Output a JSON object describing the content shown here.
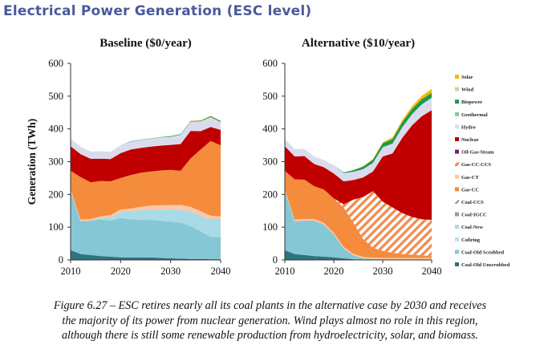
{
  "title": "Electrical Power Generation (ESC level)",
  "caption_lines": [
    "Figure 6.27 – ESC retires nearly all its coal plants in the alternative case by 2030 and receives",
    "the majority of its power from nuclear generation. Wind plays almost no role in this region,",
    "although there is still some renewable production from hydroelectricity, solar, and biomass."
  ],
  "legend": [
    {
      "name": "Solar",
      "color": "#f5b800",
      "pattern": "solid"
    },
    {
      "name": "Wind",
      "color": "#d9cf9a",
      "pattern": "solid"
    },
    {
      "name": "Biopower",
      "color": "#1d9a4c",
      "pattern": "solid"
    },
    {
      "name": "Geothermal",
      "color": "#84c79a",
      "pattern": "solid"
    },
    {
      "name": "Hydro",
      "color": "#dadcee",
      "pattern": "solid"
    },
    {
      "name": "Nuclear",
      "color": "#c00000",
      "pattern": "solid"
    },
    {
      "name": "Oil-Gas-Steam",
      "color": "#7a1f6e",
      "pattern": "solid"
    },
    {
      "name": "Gas-CC-CCS",
      "color": "#f4894a",
      "pattern": "hatch"
    },
    {
      "name": "Gas-CT",
      "color": "#fbc7a4",
      "pattern": "solid"
    },
    {
      "name": "Gas-CC",
      "color": "#f58b3d",
      "pattern": "solid"
    },
    {
      "name": "Coal-CCS",
      "color": "#8a8a8a",
      "pattern": "hatch"
    },
    {
      "name": "Coal-IGCC",
      "color": "#9a9a9a",
      "pattern": "solid"
    },
    {
      "name": "Coal-New",
      "color": "#a9dbe6",
      "pattern": "solid"
    },
    {
      "name": "Cofiring",
      "color": "#b9e0ea",
      "pattern": "solid"
    },
    {
      "name": "Coal-Old Scrubbed",
      "color": "#86c7d6",
      "pattern": "solid"
    },
    {
      "name": "Coal-Old Unscrubbed",
      "color": "#2e7580",
      "pattern": "solid"
    }
  ],
  "chart_data": [
    {
      "type": "area",
      "title": "Baseline ($0/year)",
      "ylabel": "Generation (TWh)",
      "xlabel": "",
      "ylim": [
        0,
        600
      ],
      "yticks": [
        0,
        100,
        200,
        300,
        400,
        500,
        600
      ],
      "xticks": [
        2010,
        2020,
        2030,
        2040
      ],
      "x": [
        2010,
        2012,
        2014,
        2016,
        2018,
        2020,
        2022,
        2024,
        2026,
        2028,
        2030,
        2032,
        2034,
        2036,
        2038,
        2040
      ],
      "series": [
        {
          "name": "Coal-Old Unscrubbed",
          "values": [
            30,
            18,
            15,
            12,
            10,
            8,
            8,
            8,
            8,
            6,
            5,
            4,
            3,
            3,
            2,
            2
          ]
        },
        {
          "name": "Coal-Old Scrubbed",
          "values": [
            180,
            100,
            105,
            112,
            110,
            120,
            116,
            114,
            114,
            114,
            112,
            110,
            100,
            85,
            68,
            68
          ]
        },
        {
          "name": "Coal-New",
          "values": [
            0,
            0,
            0,
            4,
            10,
            18,
            25,
            30,
            32,
            34,
            36,
            40,
            45,
            48,
            55,
            55
          ]
        },
        {
          "name": "Gas-CT",
          "values": [
            5,
            5,
            5,
            5,
            7,
            8,
            8,
            10,
            12,
            13,
            14,
            14,
            14,
            13,
            10,
            8
          ]
        },
        {
          "name": "Gas-CC",
          "values": [
            57,
            130,
            112,
            108,
            103,
            96,
            102,
            104,
            104,
            106,
            108,
            104,
            148,
            188,
            228,
            217
          ]
        },
        {
          "name": "Nuclear",
          "values": [
            75,
            70,
            72,
            68,
            68,
            76,
            78,
            76,
            76,
            76,
            76,
            82,
            84,
            56,
            43,
            47
          ]
        },
        {
          "name": "Hydro",
          "values": [
            23,
            22,
            22,
            23,
            22,
            24,
            24,
            24,
            24,
            25,
            25,
            28,
            28,
            30,
            30,
            24
          ]
        },
        {
          "name": "Biopower",
          "values": [
            0,
            0,
            0,
            0,
            0,
            0,
            1,
            1,
            1,
            1,
            2,
            2,
            2,
            2,
            3,
            3
          ]
        },
        {
          "name": "Solar",
          "values": [
            0,
            0,
            0,
            0,
            0,
            0,
            0,
            0,
            0,
            0,
            0,
            0,
            1,
            1,
            1,
            1
          ]
        }
      ]
    },
    {
      "type": "area",
      "title": "Alternative ($10/year)",
      "ylabel": "",
      "xlabel": "",
      "ylim": [
        0,
        600
      ],
      "yticks": [
        0,
        100,
        200,
        300,
        400,
        500,
        600
      ],
      "xticks": [
        2010,
        2020,
        2030,
        2040
      ],
      "x": [
        2010,
        2012,
        2014,
        2016,
        2018,
        2020,
        2022,
        2024,
        2026,
        2028,
        2030,
        2032,
        2034,
        2036,
        2038,
        2040
      ],
      "series": [
        {
          "name": "Coal-Old Unscrubbed",
          "values": [
            30,
            18,
            15,
            12,
            10,
            8,
            5,
            2,
            0,
            0,
            0,
            0,
            0,
            0,
            0,
            0
          ]
        },
        {
          "name": "Coal-Old Scrubbed",
          "values": [
            180,
            100,
            105,
            108,
            98,
            70,
            30,
            12,
            5,
            3,
            2,
            2,
            2,
            2,
            2,
            2
          ]
        },
        {
          "name": "Coal-New",
          "values": [
            0,
            0,
            0,
            0,
            0,
            0,
            0,
            0,
            0,
            0,
            0,
            0,
            0,
            0,
            0,
            0
          ]
        },
        {
          "name": "Gas-CT",
          "values": [
            5,
            5,
            5,
            5,
            5,
            5,
            5,
            5,
            4,
            4,
            4,
            4,
            4,
            4,
            4,
            4
          ]
        },
        {
          "name": "Gas-CC",
          "values": [
            57,
            123,
            120,
            100,
            102,
            105,
            120,
            95,
            55,
            30,
            22,
            16,
            12,
            10,
            8,
            6
          ]
        },
        {
          "name": "Gas-CC-CCS",
          "values": [
            0,
            0,
            0,
            0,
            0,
            0,
            10,
            70,
            128,
            173,
            150,
            138,
            125,
            115,
            110,
            110
          ]
        },
        {
          "name": "Nuclear",
          "values": [
            75,
            70,
            72,
            68,
            68,
            76,
            70,
            60,
            60,
            60,
            138,
            165,
            230,
            280,
            315,
            335
          ]
        },
        {
          "name": "Hydro",
          "values": [
            23,
            22,
            22,
            23,
            22,
            25,
            25,
            25,
            25,
            26,
            28,
            30,
            32,
            34,
            36,
            38
          ]
        },
        {
          "name": "Biopower",
          "values": [
            0,
            0,
            0,
            0,
            0,
            0,
            2,
            5,
            8,
            10,
            12,
            14,
            16,
            16,
            16,
            15
          ]
        },
        {
          "name": "Solar",
          "values": [
            0,
            0,
            0,
            0,
            0,
            0,
            0,
            0,
            1,
            2,
            3,
            5,
            6,
            8,
            10,
            12
          ]
        }
      ]
    }
  ]
}
